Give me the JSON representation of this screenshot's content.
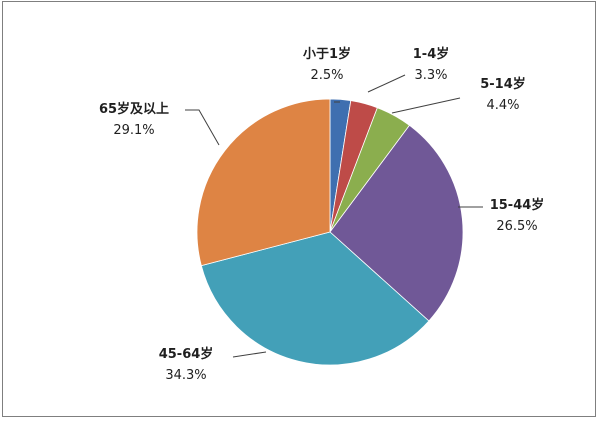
{
  "chart_data": {
    "type": "pie",
    "slices": [
      {
        "label": "小于1岁",
        "value": 2.5,
        "display_value": "2.5%",
        "color": "#3f6fb0"
      },
      {
        "label": "1-4岁",
        "value": 3.3,
        "display_value": "3.3%",
        "color": "#be4b48"
      },
      {
        "label": "5-14岁",
        "value": 4.4,
        "display_value": "4.4%",
        "color": "#8bae4e"
      },
      {
        "label": "15-44岁",
        "value": 26.5,
        "display_value": "26.5%",
        "color": "#705897"
      },
      {
        "label": "45-64岁",
        "value": 34.3,
        "display_value": "34.3%",
        "color": "#43a0b8"
      },
      {
        "label": "65岁及以上",
        "value": 29.1,
        "display_value": "29.1%",
        "color": "#de8444"
      }
    ],
    "start_angle_deg": 0,
    "direction": "clockwise",
    "legend": "none"
  }
}
